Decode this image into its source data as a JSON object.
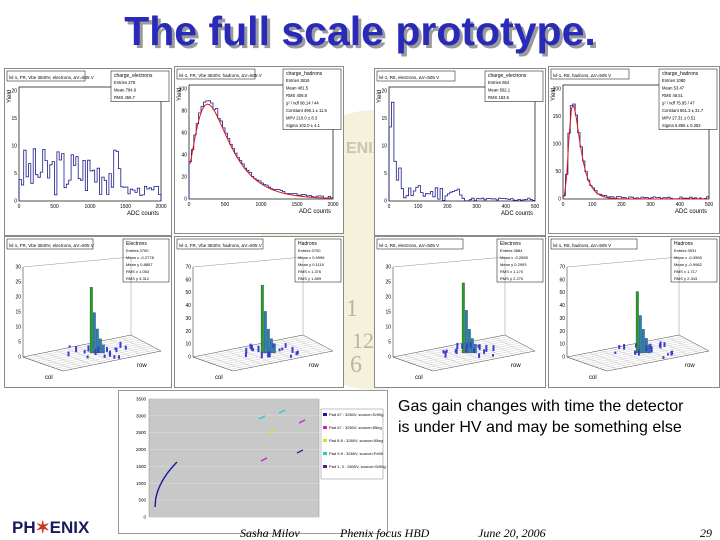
{
  "slide": {
    "title": "The full scale prototype.",
    "gain_text": "Gas gain changes with time the detector is under HV and may be something else",
    "footer_author": "Sasha Milov",
    "footer_event": "Phenix focus HBD",
    "footer_date": "June 20, 2006",
    "page_number": "29",
    "logo_left": "PH",
    "logo_right": "ENIX",
    "watermark_text": "ENIX",
    "watermark_digits": [
      "1",
      "2",
      "12",
      "6"
    ]
  },
  "hist_panels": [
    {
      "header": "lvl-1, FR, Vbe 3840V, electrons, ΔV=505 V",
      "stats_title": "charge_electrons",
      "stats": [
        "Entries   276",
        "Mean   784.6",
        "RMS   456.7"
      ],
      "ylabel": "Yield",
      "xlabel": "ADC counts",
      "yticks": [
        "20",
        "15",
        "10",
        "5",
        "0"
      ],
      "xticks": [
        "0",
        "500",
        "1000",
        "1500",
        "2000"
      ]
    },
    {
      "header": "lvl-1, FR, Vbe 3840V, hadrons, ΔV=505 V",
      "stats_title": "charge_hadrons",
      "stats": [
        "Entries   3816",
        "Mean   481.5",
        "RMS   406.8",
        "χ² / ndf   98.14 / 44",
        "Constant   496.1 ± 11.5",
        "MPV   210.0 ± 8.3",
        "Sigma   102.0 ± 4.1"
      ],
      "ylabel": "Yield",
      "xlabel": "ADC counts",
      "yticks": [
        "100",
        "80",
        "60",
        "40",
        "20",
        "0"
      ],
      "xticks": [
        "0",
        "500",
        "1000",
        "1500",
        "2000"
      ]
    },
    {
      "header": "lvl-1, R8, electrons, ΔV=505 V",
      "stats_title": "charge_electrons",
      "stats": [
        "Entries   654",
        "Mean   562.1",
        "RMS   183.5"
      ],
      "ylabel": "Yield",
      "xlabel": "ADC counts",
      "yticks": [
        "20",
        "15",
        "10",
        "5",
        "0"
      ],
      "xticks": [
        "0",
        "100",
        "200",
        "300",
        "400",
        "500"
      ]
    },
    {
      "header": "lvl-1, R8, hadrons, ΔV=505 V",
      "stats_title": "charge_hadrons",
      "stats": [
        "Entries   1080",
        "Mean   53.47",
        "RMS   48.51",
        "χ² / ndf   75.95 / 47",
        "Constant   561.3 ± 31.7",
        "MPV   27.31 ± 0.51",
        "Sigma   5.855 ± 0.362"
      ],
      "ylabel": "Yield",
      "xlabel": "ADC counts",
      "yticks": [
        "200",
        "150",
        "100",
        "50",
        "0"
      ],
      "xticks": [
        "0",
        "100",
        "200",
        "300",
        "400",
        "500"
      ]
    }
  ],
  "lego_panels": [
    {
      "header": "lvl-1, FR, Vbe 3840V, electrons, ΔV=505 V",
      "stats_title": "Electrons",
      "stats": [
        "Entries   3700",
        "Mean x   -0.2778",
        "Mean y   0.8857",
        "RMS x   1.053",
        "RMS y   3.312"
      ],
      "zticks": [
        "30",
        "25",
        "20",
        "15",
        "10",
        "5",
        "0"
      ],
      "axis_row": "row",
      "axis_col": "col"
    },
    {
      "header": "lvl-1, FR, Vbe 3840V, hadrons, ΔV=505 V",
      "stats_title": "Hadrons",
      "stats": [
        "Entries   3700",
        "Mean x   0.0996",
        "Mean y   0.1116",
        "RMS x   1.376",
        "RMS y   1.659"
      ],
      "zticks": [
        "70",
        "60",
        "50",
        "40",
        "30",
        "20",
        "10",
        "0"
      ],
      "axis_row": "row",
      "axis_col": "col"
    },
    {
      "header": "lvl-1, R8, electrons, ΔV=505 V",
      "stats_title": "Electrons",
      "stats": [
        "Entries   3684",
        "Mean x   -0.2655",
        "Mean y   0.2993",
        "RMS x   1.170",
        "RMS y   2.270"
      ],
      "zticks": [
        "30",
        "25",
        "20",
        "15",
        "10",
        "5",
        "0"
      ],
      "axis_row": "row",
      "axis_col": "col"
    },
    {
      "header": "lvl-1, R8, hadrons, ΔV=505 V",
      "stats_title": "Hadrons",
      "stats": [
        "Entries   3931",
        "Mean x   -0.3965",
        "Mean y   -0.9982",
        "RMS x   1.717",
        "RMS y   2.343"
      ],
      "zticks": [
        "70",
        "60",
        "50",
        "40",
        "30",
        "20",
        "10",
        "0"
      ],
      "axis_row": "row",
      "axis_col": "col"
    }
  ],
  "gain_chart": {
    "legend": [
      "Pad 67 : 3260V, source=Sr90g",
      "Pad 67 : 3260V, source=55eg",
      "Pad 8 8 : 3260V, source=55eg",
      "Pad 9 8 : 3260V, source=Fe55",
      "Pad 1, 3 : 2600V, source=Sr90g"
    ],
    "legend_colors": [
      "#1a1a9a",
      "#cc22cc",
      "#dddd22",
      "#22cccc",
      "#5a1a8a"
    ],
    "yticks": [
      "3500",
      "3000",
      "2500",
      "2000",
      "1500",
      "1000",
      "500",
      "0"
    ]
  }
}
